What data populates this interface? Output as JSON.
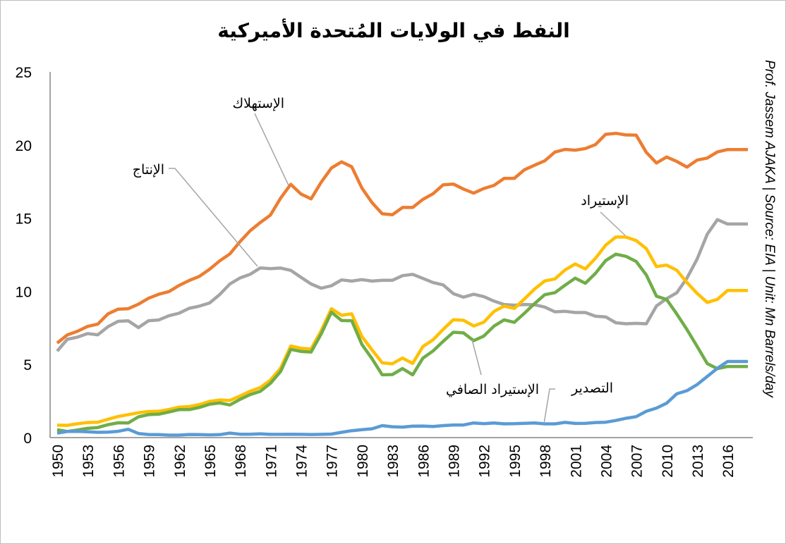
{
  "chart_data": {
    "type": "line",
    "title": "النفط في الولايات المُتحدة الأميركية",
    "side_note": "Prof. Jassem AJAKA | Source: EIA | Unit: Mn Barrels/day",
    "xlabel": "",
    "ylabel": "",
    "ylim": [
      0,
      25
    ],
    "yticks": [
      "0",
      "5",
      "10",
      "15",
      "20",
      "25"
    ],
    "xlim": [
      1950,
      2018
    ],
    "xtick_labels": [
      "1950",
      "1953",
      "1956",
      "1959",
      "1962",
      "1965",
      "1968",
      "1971",
      "1974",
      "1977",
      "1980",
      "1983",
      "1986",
      "1989",
      "1992",
      "1995",
      "1998",
      "2001",
      "2004",
      "2007",
      "2010",
      "2013",
      "2016"
    ],
    "grid": false,
    "legend": "none (inline labels)",
    "x_start": 1950,
    "series": [
      {
        "name": "الإستهلاك",
        "color": "#ed7d31",
        "values": [
          6.46,
          7.02,
          7.27,
          7.6,
          7.76,
          8.46,
          8.78,
          8.81,
          9.12,
          9.53,
          9.8,
          9.98,
          10.4,
          10.74,
          11.02,
          11.51,
          12.08,
          12.56,
          13.39,
          14.14,
          14.7,
          15.21,
          16.37,
          17.31,
          16.65,
          16.32,
          17.46,
          18.43,
          18.85,
          18.51,
          17.06,
          16.06,
          15.3,
          15.23,
          15.73,
          15.73,
          16.28,
          16.67,
          17.28,
          17.33,
          16.99,
          16.71,
          17.03,
          17.24,
          17.72,
          17.72,
          18.31,
          18.62,
          18.92,
          19.52,
          19.7,
          19.65,
          19.76,
          20.03,
          20.73,
          20.8,
          20.69,
          20.68,
          19.5,
          18.77,
          19.18,
          18.88,
          18.49,
          18.97,
          19.11,
          19.53,
          19.69,
          19.69,
          19.69
        ]
      },
      {
        "name": "الإنتاج",
        "color": "#a5a5a5",
        "values": [
          5.91,
          6.72,
          6.87,
          7.11,
          7.03,
          7.58,
          7.95,
          7.98,
          7.52,
          7.99,
          8.04,
          8.33,
          8.5,
          8.84,
          8.99,
          9.2,
          9.78,
          10.5,
          10.91,
          11.16,
          11.6,
          11.55,
          11.59,
          11.43,
          10.96,
          10.5,
          10.21,
          10.38,
          10.78,
          10.7,
          10.8,
          10.7,
          10.75,
          10.75,
          11.07,
          11.16,
          10.88,
          10.6,
          10.44,
          9.84,
          9.6,
          9.8,
          9.64,
          9.33,
          9.1,
          9.05,
          9.1,
          9.08,
          8.92,
          8.6,
          8.63,
          8.55,
          8.55,
          8.3,
          8.25,
          7.85,
          7.78,
          7.81,
          7.78,
          9.0,
          9.5,
          9.9,
          10.9,
          12.2,
          13.9,
          14.9,
          14.6,
          14.6,
          14.6
        ]
      },
      {
        "name": "الإستيراد",
        "color": "#ffc000",
        "values": [
          0.85,
          0.84,
          0.95,
          1.03,
          1.05,
          1.25,
          1.44,
          1.57,
          1.7,
          1.78,
          1.8,
          1.92,
          2.08,
          2.12,
          2.26,
          2.47,
          2.57,
          2.54,
          2.84,
          3.17,
          3.42,
          3.93,
          4.74,
          6.26,
          6.11,
          6.06,
          7.31,
          8.81,
          8.36,
          8.46,
          6.91,
          5.99,
          5.11,
          5.05,
          5.44,
          5.07,
          6.22,
          6.68,
          7.4,
          8.06,
          8.02,
          7.63,
          7.89,
          8.62,
          8.99,
          8.83,
          9.48,
          10.16,
          10.71,
          10.85,
          11.46,
          11.87,
          11.53,
          12.26,
          13.15,
          13.71,
          13.71,
          13.47,
          12.92,
          11.69,
          11.79,
          11.44,
          10.6,
          9.86,
          9.24,
          9.45,
          10.06,
          10.06,
          10.06
        ]
      },
      {
        "name": "الإستيراد الصافي",
        "color": "#70ad47",
        "values": [
          0.54,
          0.42,
          0.52,
          0.63,
          0.69,
          0.88,
          1.01,
          1.0,
          1.42,
          1.57,
          1.6,
          1.75,
          1.91,
          1.91,
          2.06,
          2.28,
          2.37,
          2.23,
          2.61,
          2.94,
          3.16,
          3.71,
          4.52,
          6.03,
          5.89,
          5.85,
          7.09,
          8.57,
          8.0,
          7.99,
          6.37,
          5.39,
          4.29,
          4.31,
          4.72,
          4.29,
          5.43,
          5.92,
          6.58,
          7.2,
          7.16,
          6.63,
          6.94,
          7.62,
          8.05,
          7.88,
          8.5,
          9.16,
          9.77,
          9.91,
          10.42,
          10.9,
          10.55,
          11.23,
          12.1,
          12.54,
          12.39,
          12.04,
          11.12,
          9.67,
          9.44,
          8.45,
          7.39,
          6.24,
          5.06,
          4.71,
          4.86,
          4.86,
          4.86
        ]
      },
      {
        "name": "التصدير",
        "color": "#5b9bd5",
        "values": [
          0.31,
          0.42,
          0.43,
          0.4,
          0.36,
          0.37,
          0.43,
          0.57,
          0.28,
          0.21,
          0.2,
          0.17,
          0.17,
          0.21,
          0.2,
          0.19,
          0.2,
          0.31,
          0.23,
          0.23,
          0.26,
          0.22,
          0.22,
          0.23,
          0.22,
          0.21,
          0.22,
          0.24,
          0.36,
          0.47,
          0.54,
          0.6,
          0.82,
          0.74,
          0.72,
          0.78,
          0.79,
          0.76,
          0.82,
          0.86,
          0.86,
          1.0,
          0.95,
          1.0,
          0.94,
          0.95,
          0.98,
          1.0,
          0.94,
          0.94,
          1.04,
          0.97,
          0.98,
          1.03,
          1.05,
          1.17,
          1.32,
          1.43,
          1.8,
          2.02,
          2.35,
          2.99,
          3.21,
          3.62,
          4.18,
          4.74,
          5.2,
          5.2,
          5.2
        ]
      }
    ]
  }
}
